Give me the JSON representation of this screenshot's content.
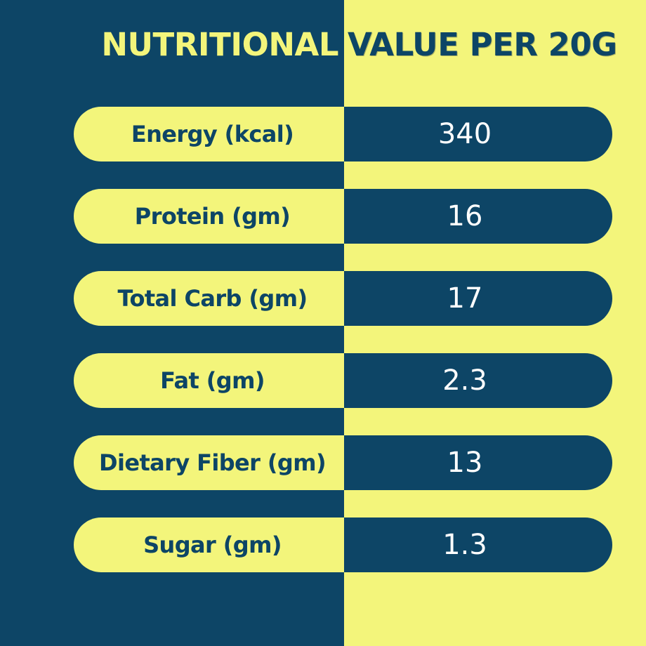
{
  "title": {
    "part_left": "NUTRITIONAL",
    "part_right": "VALUE PER 20G"
  },
  "colors": {
    "navy": "#0d4566",
    "yellow": "#f3f57b",
    "title_left": "#f3f57b",
    "title_right": "#0d4566"
  },
  "rows": [
    {
      "label": "Energy (kcal)",
      "value": "340"
    },
    {
      "label": "Protein (gm)",
      "value": "16"
    },
    {
      "label": "Total Carb (gm)",
      "value": "17"
    },
    {
      "label": "Fat (gm)",
      "value": "2.3"
    },
    {
      "label": "Dietary Fiber (gm)",
      "value": "13"
    },
    {
      "label": "Sugar (gm)",
      "value": "1.3"
    }
  ]
}
